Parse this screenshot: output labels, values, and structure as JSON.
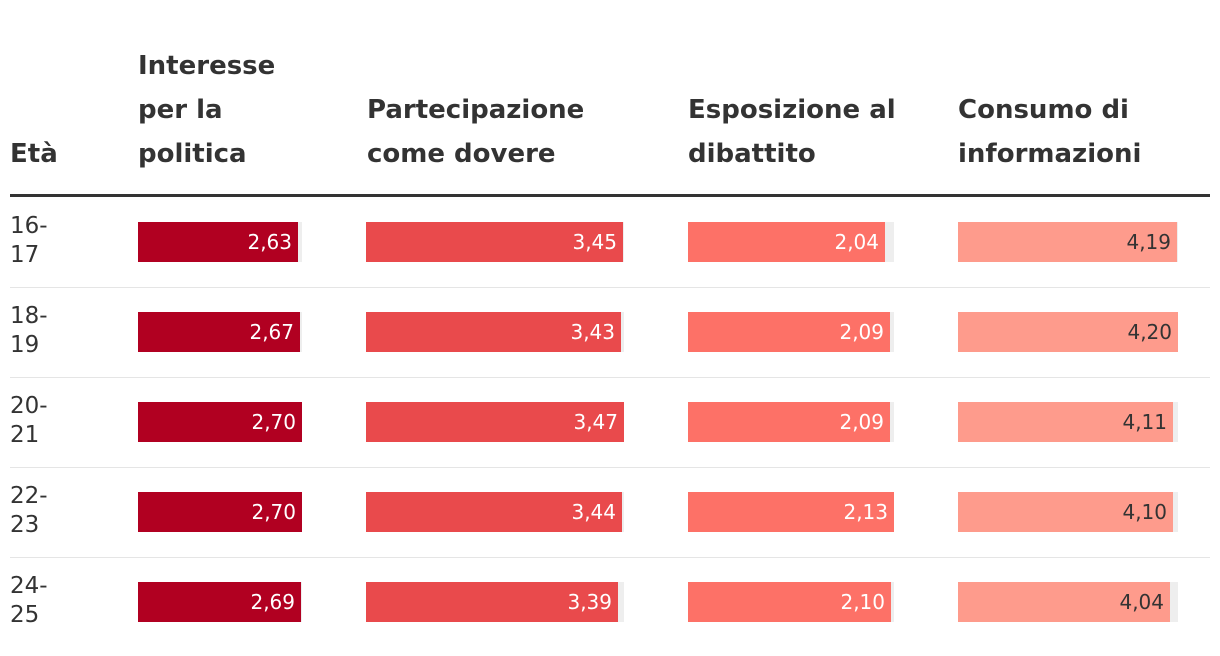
{
  "chart_data": {
    "type": "table",
    "row_header": "Età",
    "columns": [
      {
        "label": "Interesse\nper la\npolitica",
        "color": "#b10021",
        "text_color": "#ffffff"
      },
      {
        "label": "Partecipazione\ncome dovere",
        "color": "#e94a4c",
        "text_color": "#ffffff"
      },
      {
        "label": "Esposizione al\ndibattito",
        "color": "#fd7167",
        "text_color": "#ffffff"
      },
      {
        "label": "Consumo di\ninformazioni",
        "color": "#fe9b8c",
        "text_color": "#333333"
      }
    ],
    "rows": [
      {
        "age": "16-\n17",
        "values": [
          "2,63",
          "3,45",
          "2,04",
          "4,19"
        ]
      },
      {
        "age": "18-\n19",
        "values": [
          "2,67",
          "3,43",
          "2,09",
          "4,20"
        ]
      },
      {
        "age": "20-\n21",
        "values": [
          "2,70",
          "3,47",
          "2,09",
          "4,11"
        ]
      },
      {
        "age": "22-\n23",
        "values": [
          "2,70",
          "3,44",
          "2,13",
          "4,10"
        ]
      },
      {
        "age": "24-\n25",
        "values": [
          "2,69",
          "3,39",
          "2,10",
          "4,04"
        ]
      }
    ]
  }
}
